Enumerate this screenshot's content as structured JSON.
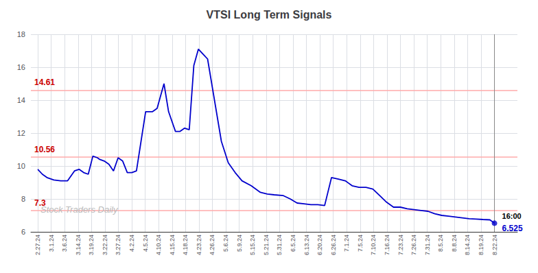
{
  "chart_data": {
    "type": "line",
    "title": "VTSI Long Term Signals",
    "x": [
      0,
      2,
      4,
      7,
      10,
      13,
      16,
      18,
      20,
      22,
      24,
      26,
      27,
      29,
      31,
      33,
      35,
      37,
      39,
      41,
      43,
      45,
      47,
      50,
      52,
      55,
      57,
      60,
      62,
      64,
      66,
      68,
      70,
      72,
      74,
      77,
      80,
      83,
      86,
      89,
      93,
      97,
      100,
      103,
      107,
      110,
      113,
      116,
      119,
      122,
      125,
      128,
      131,
      134,
      137,
      140,
      143,
      146,
      149,
      152,
      155,
      158,
      161,
      164,
      167,
      170,
      173,
      176,
      179,
      182,
      185,
      188,
      191,
      194,
      197,
      199
    ],
    "values": [
      9.8,
      9.5,
      9.3,
      9.15,
      9.1,
      9.1,
      9.7,
      9.8,
      9.6,
      9.5,
      10.6,
      10.5,
      10.4,
      10.3,
      10.1,
      9.7,
      10.5,
      10.3,
      9.6,
      9.6,
      9.7,
      11.5,
      13.3,
      13.3,
      13.5,
      15.0,
      13.3,
      12.1,
      12.1,
      12.3,
      12.2,
      16.1,
      17.1,
      16.8,
      16.5,
      14.0,
      11.5,
      10.2,
      9.6,
      9.1,
      8.8,
      8.4,
      8.3,
      8.25,
      8.2,
      8.0,
      7.75,
      7.7,
      7.65,
      7.65,
      7.6,
      9.3,
      9.2,
      9.1,
      8.8,
      8.7,
      8.7,
      8.6,
      8.2,
      7.8,
      7.5,
      7.5,
      7.4,
      7.35,
      7.3,
      7.25,
      7.1,
      7.0,
      6.95,
      6.9,
      6.85,
      6.8,
      6.78,
      6.75,
      6.73,
      6.525
    ],
    "color": "#0000cc",
    "xlim": [
      -3,
      209
    ],
    "xticks": [
      {
        "value": 0,
        "label": "2.27.24"
      },
      {
        "value": 5.8529411765,
        "label": "3.1.24"
      },
      {
        "value": 11.7058823529,
        "label": "3.6.24"
      },
      {
        "value": 17.5588235294,
        "label": "3.14.24"
      },
      {
        "value": 23.4117647059,
        "label": "3.19.24"
      },
      {
        "value": 29.2647058824,
        "label": "3.22.24"
      },
      {
        "value": 35.1176470588,
        "label": "3.27.24"
      },
      {
        "value": 40.9705882353,
        "label": "4.2.24"
      },
      {
        "value": 46.8235294118,
        "label": "4.5.24"
      },
      {
        "value": 52.6764705882,
        "label": "4.10.24"
      },
      {
        "value": 58.5294117647,
        "label": "4.15.24"
      },
      {
        "value": 64.3823529412,
        "label": "4.18.24"
      },
      {
        "value": 70.2352941176,
        "label": "4.23.24"
      },
      {
        "value": 76.0882352941,
        "label": "4.26.24"
      },
      {
        "value": 81.9411764706,
        "label": "5.6.24"
      },
      {
        "value": 87.7941176471,
        "label": "5.9.24"
      },
      {
        "value": 93.6470588235,
        "label": "5.15.24"
      },
      {
        "value": 99.5,
        "label": "5.21.24"
      },
      {
        "value": 105.3529411765,
        "label": "5.31.24"
      },
      {
        "value": 111.2058823529,
        "label": "6.5.24"
      },
      {
        "value": 117.0588235294,
        "label": "6.13.24"
      },
      {
        "value": 122.9117647059,
        "label": "6.20.24"
      },
      {
        "value": 128.7647058824,
        "label": "6.26.24"
      },
      {
        "value": 134.6176470588,
        "label": "7.1.24"
      },
      {
        "value": 140.4705882353,
        "label": "7.5.24"
      },
      {
        "value": 146.3235294118,
        "label": "7.10.24"
      },
      {
        "value": 152.1764705882,
        "label": "7.16.24"
      },
      {
        "value": 158.0294117647,
        "label": "7.23.24"
      },
      {
        "value": 163.8823529412,
        "label": "7.26.24"
      },
      {
        "value": 169.7352941176,
        "label": "7.31.24"
      },
      {
        "value": 175.5882352941,
        "label": "8.5.24"
      },
      {
        "value": 181.4411764706,
        "label": "8.8.24"
      },
      {
        "value": 187.2941176471,
        "label": "8.14.24"
      },
      {
        "value": 193.1470588235,
        "label": "8.19.24"
      },
      {
        "value": 199,
        "label": "8.22.24"
      }
    ],
    "ylim": [
      6,
      18
    ],
    "yticks": [
      6,
      8,
      10,
      12,
      14,
      16,
      18
    ],
    "grid": true,
    "hlines": [
      {
        "value": 14.61,
        "label": "14.61"
      },
      {
        "value": 10.56,
        "label": "10.56"
      },
      {
        "value": 7.3,
        "label": "7.3"
      }
    ],
    "hline_color": "#ffaaaa",
    "hline_label_color": "#cc0000",
    "vlines": [
      {
        "value": 199,
        "color": "#888888"
      }
    ],
    "annotations": [
      {
        "text": "16:00",
        "x": 199,
        "y": 6.525,
        "color": "#000000"
      },
      {
        "text": "6.525",
        "x": 199,
        "y": 6.525,
        "color": "#0000cc"
      }
    ],
    "watermark": {
      "text": "Stock Traders Daily",
      "color": "#bbbbbb"
    }
  }
}
